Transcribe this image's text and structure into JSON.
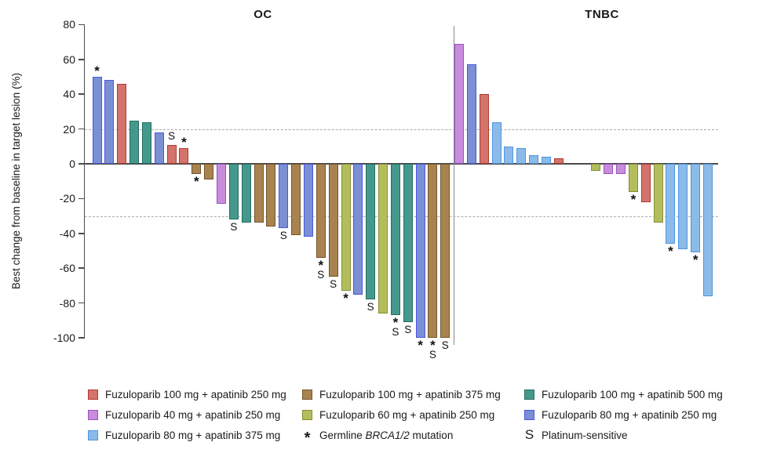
{
  "chart_data": {
    "type": "bar",
    "variant": "waterfall",
    "ylabel": "Best change from baseline in target lesion (%)",
    "ylim": [
      -100,
      80
    ],
    "yticks": [
      80,
      60,
      40,
      20,
      0,
      -20,
      -40,
      -60,
      -80,
      -100
    ],
    "reference_lines": [
      20,
      -30
    ],
    "grid": "off",
    "legend_position": "bottom",
    "colors": {
      "red": {
        "fill": "#D3736C",
        "stroke": "#B03A31"
      },
      "brown": {
        "fill": "#A9834F",
        "stroke": "#73542B"
      },
      "teal": {
        "fill": "#44998C",
        "stroke": "#276C61"
      },
      "orchid": {
        "fill": "#C78DDC",
        "stroke": "#9B51C0"
      },
      "olive": {
        "fill": "#B4BD5C",
        "stroke": "#848F35"
      },
      "royal": {
        "fill": "#7B8FD4",
        "stroke": "#4B58DF"
      },
      "lightblue": {
        "fill": "#8CBBE9",
        "stroke": "#4D95DE"
      }
    },
    "panels": [
      {
        "title": "OC",
        "bars": [
          {
            "value": 50,
            "color": "royal",
            "markers": "*"
          },
          {
            "value": 48,
            "color": "royal"
          },
          {
            "value": 46,
            "color": "red"
          },
          {
            "value": 25,
            "color": "teal"
          },
          {
            "value": 24,
            "color": "teal"
          },
          {
            "value": 18,
            "color": "royal"
          },
          {
            "value": 11,
            "color": "red",
            "markers": "S"
          },
          {
            "value": 9,
            "color": "red",
            "markers": "*"
          },
          {
            "value": -6,
            "color": "brown",
            "markers": "*"
          },
          {
            "value": -9,
            "color": "brown"
          },
          {
            "value": -23,
            "color": "orchid"
          },
          {
            "value": -32,
            "color": "teal",
            "markers": "S"
          },
          {
            "value": -34,
            "color": "teal"
          },
          {
            "value": -34,
            "color": "brown"
          },
          {
            "value": -36,
            "color": "brown"
          },
          {
            "value": -37,
            "color": "royal",
            "markers": "S"
          },
          {
            "value": -41,
            "color": "brown"
          },
          {
            "value": -42,
            "color": "royal"
          },
          {
            "value": -54,
            "color": "brown",
            "markers": "*S"
          },
          {
            "value": -65,
            "color": "brown",
            "markers": "S"
          },
          {
            "value": -73,
            "color": "olive",
            "markers": "*"
          },
          {
            "value": -75,
            "color": "royal"
          },
          {
            "value": -78,
            "color": "teal",
            "markers": "S"
          },
          {
            "value": -86,
            "color": "olive"
          },
          {
            "value": -87,
            "color": "teal",
            "markers": "*S"
          },
          {
            "value": -91,
            "color": "teal",
            "markers": "S"
          },
          {
            "value": -100,
            "color": "royal",
            "markers": "*"
          },
          {
            "value": -100,
            "color": "brown",
            "markers": "*S"
          },
          {
            "value": -100,
            "color": "brown",
            "markers": "S"
          }
        ]
      },
      {
        "title": "TNBC",
        "bars": [
          {
            "value": 69,
            "color": "orchid"
          },
          {
            "value": 57,
            "color": "royal"
          },
          {
            "value": 40,
            "color": "red"
          },
          {
            "value": 24,
            "color": "lightblue"
          },
          {
            "value": 10,
            "color": "lightblue"
          },
          {
            "value": 9,
            "color": "lightblue"
          },
          {
            "value": 5,
            "color": "lightblue"
          },
          {
            "value": 4,
            "color": "lightblue"
          },
          {
            "value": 3,
            "color": "red"
          },
          {
            "spacer": true
          },
          {
            "spacer": true
          },
          {
            "value": -4,
            "color": "olive"
          },
          {
            "value": -6,
            "color": "orchid"
          },
          {
            "value": -6,
            "color": "orchid"
          },
          {
            "value": -16,
            "color": "olive",
            "markers": "*"
          },
          {
            "value": -22,
            "color": "red"
          },
          {
            "value": -34,
            "color": "olive"
          },
          {
            "value": -46,
            "color": "lightblue",
            "markers": "*"
          },
          {
            "value": -49,
            "color": "lightblue"
          },
          {
            "value": -51,
            "color": "lightblue",
            "markers": "*"
          },
          {
            "value": -76,
            "color": "lightblue"
          }
        ]
      }
    ]
  },
  "legend": {
    "columns": [
      [
        {
          "swatch": "red",
          "label": "Fuzuloparib 100 mg + apatinib 250 mg"
        },
        {
          "swatch": "orchid",
          "label": "Fuzuloparib 40 mg + apatinib 250 mg"
        },
        {
          "swatch": "lightblue",
          "label": "Fuzuloparib 80 mg + apatinib 375 mg"
        }
      ],
      [
        {
          "swatch": "brown",
          "label": "Fuzuloparib 100 mg + apatinib 375 mg"
        },
        {
          "swatch": "olive",
          "label": "Fuzuloparib 60 mg + apatinib 250 mg"
        },
        {
          "symbol": "*",
          "label_prefix": "Germline ",
          "label_italic": "BRCA1/2",
          "label_suffix": " mutation"
        }
      ],
      [
        {
          "swatch": "teal",
          "label": "Fuzuloparib 100 mg + apatinib 500 mg"
        },
        {
          "swatch": "royal",
          "label": "Fuzuloparib 80 mg + apatinib 250 mg"
        },
        {
          "symbol": "S",
          "label": "Platinum-sensitive"
        }
      ]
    ]
  }
}
